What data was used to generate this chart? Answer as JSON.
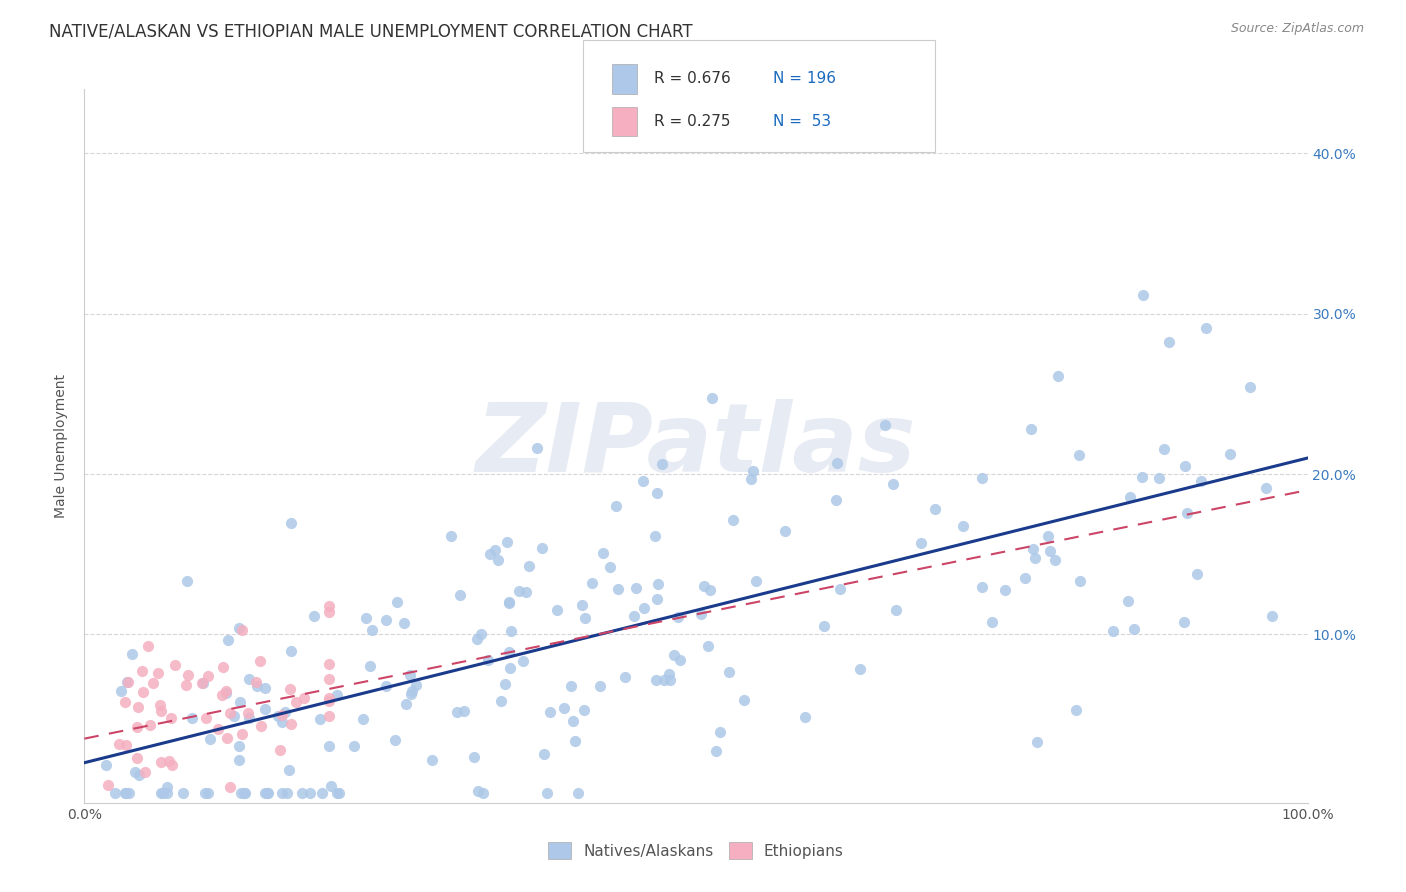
{
  "title": "NATIVE/ALASKAN VS ETHIOPIAN MALE UNEMPLOYMENT CORRELATION CHART",
  "source": "Source: ZipAtlas.com",
  "ylabel": "Male Unemployment",
  "watermark": "ZIPatlas",
  "legend_label1": "Natives/Alaskans",
  "legend_label2": "Ethiopians",
  "native_color": "#adc8e8",
  "ethiopian_color": "#f5afc0",
  "native_line_color": "#1a3a8c",
  "ethiopian_line_color": "#cc4466",
  "background_color": "#ffffff",
  "title_fontsize": 12,
  "axis_label_fontsize": 10,
  "tick_fontsize": 10,
  "legend_text_color": "#333333",
  "legend_num_color": "#1a6abf",
  "right_tick_color": "#3a7abf",
  "xlim": [
    0.0,
    1.0
  ],
  "ylim": [
    -0.005,
    0.44
  ]
}
